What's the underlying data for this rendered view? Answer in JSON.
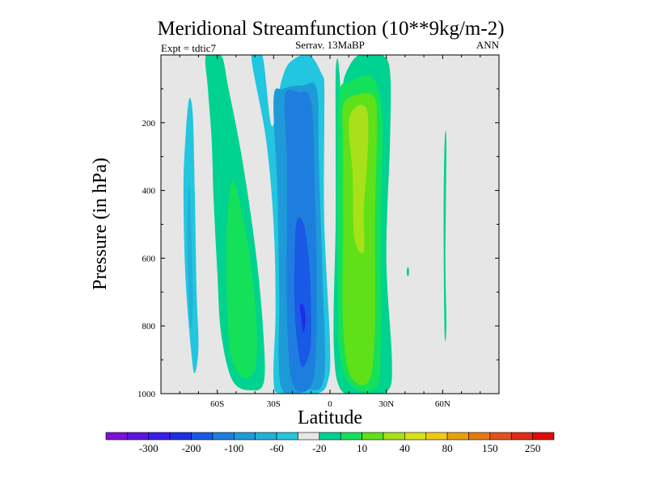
{
  "chart_data": {
    "type": "filled-contour",
    "title": "Meridional Streamfunction (10**9kg/m-2)",
    "left_string": "Expt = tdtic7",
    "center_string": "Serrav.   13MaBP",
    "right_string": "ANN",
    "xlabel": "Latitude",
    "ylabel": "Pressure (in hPa)",
    "xlim": [
      -90,
      90
    ],
    "ylim": [
      0,
      1000
    ],
    "y_inverted": true,
    "x_ticks": [
      {
        "value": -60,
        "label": "60S"
      },
      {
        "value": -30,
        "label": "30S"
      },
      {
        "value": 0,
        "label": "0"
      },
      {
        "value": 30,
        "label": "30N"
      },
      {
        "value": 60,
        "label": "60N"
      }
    ],
    "y_ticks": [
      {
        "value": 200,
        "label": "200"
      },
      {
        "value": 400,
        "label": "400"
      },
      {
        "value": 600,
        "label": "600"
      },
      {
        "value": 800,
        "label": "800"
      },
      {
        "value": 1000,
        "label": "1000"
      }
    ],
    "background_color": "#e6e6e6",
    "colorbar": {
      "colors": [
        "#7b10d8",
        "#5a14e0",
        "#3a1ee8",
        "#1e2ee6",
        "#1a58e6",
        "#1e7ee0",
        "#1f9ad8",
        "#22b0d8",
        "#22c6de",
        "#e6e6e6",
        "#00d290",
        "#14e05a",
        "#60e018",
        "#a8e01a",
        "#d8e01a",
        "#f0c814",
        "#e8a010",
        "#e67814",
        "#e2521a",
        "#e02a14",
        "#e00a0a"
      ],
      "labels": [
        {
          "after_index": 1,
          "text": "-300"
        },
        {
          "after_index": 3,
          "text": "-200"
        },
        {
          "after_index": 5,
          "text": "-100"
        },
        {
          "after_index": 7,
          "text": "-60"
        },
        {
          "after_index": 9,
          "text": "-20"
        },
        {
          "after_index": 11,
          "text": "10"
        },
        {
          "after_index": 13,
          "text": "40"
        },
        {
          "after_index": 15,
          "text": "80"
        },
        {
          "after_index": 17,
          "text": "150"
        },
        {
          "after_index": 19,
          "text": "250"
        }
      ]
    },
    "contour_regions": [
      {
        "name": "sh-polar-negative-cell",
        "value": -10,
        "color": "#22c6de",
        "points": [
          [
            -75,
            130
          ],
          [
            -73,
            180
          ],
          [
            -72,
            400
          ],
          [
            -71,
            700
          ],
          [
            -70,
            860
          ],
          [
            -72,
            940
          ],
          [
            -74,
            870
          ],
          [
            -77,
            650
          ],
          [
            -78,
            400
          ],
          [
            -77,
            250
          ]
        ]
      },
      {
        "name": "sh-polar-negative-core",
        "value": -20,
        "color": "#22b0d8",
        "points": [
          [
            -75,
            380
          ],
          [
            -74,
            500
          ],
          [
            -73,
            720
          ],
          [
            -74,
            810
          ],
          [
            -75,
            730
          ],
          [
            -76,
            520
          ]
        ]
      },
      {
        "name": "sh-ferrel-positive-cell",
        "value": 10,
        "color": "#00d290",
        "points": [
          [
            -66,
            0
          ],
          [
            -58,
            0
          ],
          [
            -54,
            100
          ],
          [
            -47,
            300
          ],
          [
            -40,
            560
          ],
          [
            -36,
            780
          ],
          [
            -35,
            960
          ],
          [
            -42,
            990
          ],
          [
            -52,
            960
          ],
          [
            -58,
            820
          ],
          [
            -60,
            640
          ],
          [
            -62,
            420
          ],
          [
            -63,
            250
          ],
          [
            -65,
            100
          ]
        ]
      },
      {
        "name": "sh-ferrel-positive-core",
        "value": 40,
        "color": "#14e05a",
        "points": [
          [
            -52,
            370
          ],
          [
            -47,
            460
          ],
          [
            -42,
            620
          ],
          [
            -39,
            800
          ],
          [
            -40,
            930
          ],
          [
            -47,
            950
          ],
          [
            -53,
            880
          ],
          [
            -55,
            700
          ],
          [
            -55,
            520
          ]
        ]
      },
      {
        "name": "sh-hadley-outer-negative",
        "value": -10,
        "color": "#22c6de",
        "points": [
          [
            -42,
            0
          ],
          [
            -36,
            0
          ],
          [
            -31,
            210
          ],
          [
            -26,
            80
          ],
          [
            -21,
            20
          ],
          [
            -11,
            0
          ],
          [
            -4,
            60
          ],
          [
            -3,
            90
          ],
          [
            -3,
            200
          ],
          [
            -3,
            500
          ],
          [
            0,
            850
          ],
          [
            -1,
            960
          ],
          [
            -7,
            1000
          ],
          [
            -26,
            1000
          ],
          [
            -30,
            960
          ],
          [
            -29,
            750
          ],
          [
            -30,
            500
          ],
          [
            -34,
            250
          ]
        ]
      },
      {
        "name": "sh-hadley-negative-20",
        "value": -20,
        "color": "#1f9ad8",
        "points": [
          [
            -30,
            130
          ],
          [
            -25,
            100
          ],
          [
            -15,
            90
          ],
          [
            -7,
            100
          ],
          [
            -6,
            300
          ],
          [
            -4,
            650
          ],
          [
            -3,
            950
          ],
          [
            -12,
            990
          ],
          [
            -26,
            980
          ],
          [
            -27,
            700
          ],
          [
            -28,
            400
          ]
        ]
      },
      {
        "name": "sh-hadley-negative-40",
        "value": -40,
        "color": "#1e7ee0",
        "points": [
          [
            -24,
            120
          ],
          [
            -17,
            110
          ],
          [
            -10,
            140
          ],
          [
            -8,
            400
          ],
          [
            -7,
            700
          ],
          [
            -9,
            960
          ],
          [
            -20,
            970
          ],
          [
            -23,
            740
          ],
          [
            -23,
            500
          ],
          [
            -23,
            300
          ]
        ]
      },
      {
        "name": "sh-hadley-negative-60",
        "value": -60,
        "color": "#1a58e6",
        "points": [
          [
            -18,
            500
          ],
          [
            -14,
            500
          ],
          [
            -11,
            620
          ],
          [
            -10,
            800
          ],
          [
            -11,
            880
          ],
          [
            -15,
            920
          ],
          [
            -18,
            820
          ],
          [
            -19,
            700
          ]
        ]
      },
      {
        "name": "sh-hadley-negative-core",
        "value": -80,
        "color": "#1e2ee6",
        "points": [
          [
            -16,
            740
          ],
          [
            -14,
            740
          ],
          [
            -13,
            780
          ],
          [
            -14,
            820
          ],
          [
            -15,
            790
          ]
        ]
      },
      {
        "name": "nh-hadley-positive-10",
        "value": 10,
        "color": "#00d290",
        "points": [
          [
            4,
            10
          ],
          [
            5,
            50
          ],
          [
            6,
            120
          ],
          [
            8,
            60
          ],
          [
            14,
            5
          ],
          [
            22,
            0
          ],
          [
            28,
            0
          ],
          [
            32,
            50
          ],
          [
            32,
            250
          ],
          [
            30,
            600
          ],
          [
            33,
            900
          ],
          [
            31,
            990
          ],
          [
            20,
            1000
          ],
          [
            6,
            990
          ],
          [
            2,
            850
          ],
          [
            3,
            500
          ],
          [
            3,
            250
          ],
          [
            3,
            60
          ]
        ]
      },
      {
        "name": "nh-hadley-positive-20",
        "value": 20,
        "color": "#14e05a",
        "points": [
          [
            5,
            110
          ],
          [
            10,
            80
          ],
          [
            20,
            60
          ],
          [
            25,
            90
          ],
          [
            28,
            200
          ],
          [
            27,
            500
          ],
          [
            27,
            850
          ],
          [
            25,
            980
          ],
          [
            12,
            980
          ],
          [
            5,
            880
          ],
          [
            4,
            600
          ],
          [
            4,
            300
          ]
        ]
      },
      {
        "name": "nh-hadley-positive-40",
        "value": 40,
        "color": "#60e018",
        "points": [
          [
            7,
            150
          ],
          [
            13,
            120
          ],
          [
            23,
            120
          ],
          [
            25,
            200
          ],
          [
            24,
            500
          ],
          [
            24,
            800
          ],
          [
            21,
            960
          ],
          [
            11,
            950
          ],
          [
            7,
            800
          ],
          [
            7,
            500
          ],
          [
            7,
            250
          ]
        ]
      },
      {
        "name": "nh-hadley-positive-core",
        "value": 60,
        "color": "#a8e01a",
        "points": [
          [
            10,
            200
          ],
          [
            15,
            150
          ],
          [
            20,
            170
          ],
          [
            20,
            300
          ],
          [
            18,
            450
          ],
          [
            18,
            580
          ],
          [
            13,
            540
          ],
          [
            12,
            350
          ]
        ]
      },
      {
        "name": "nh-small-island",
        "value": 10,
        "color": "#00d290",
        "points": [
          [
            41,
            630
          ],
          [
            42,
            630
          ],
          [
            42,
            650
          ],
          [
            41,
            650
          ]
        ]
      },
      {
        "name": "nh-thin-streak",
        "value": 10,
        "color": "#00d290",
        "points": [
          [
            61,
            260
          ],
          [
            62,
            260
          ],
          [
            61.5,
            600
          ],
          [
            62,
            800
          ],
          [
            61,
            820
          ],
          [
            60.5,
            500
          ]
        ]
      }
    ]
  }
}
